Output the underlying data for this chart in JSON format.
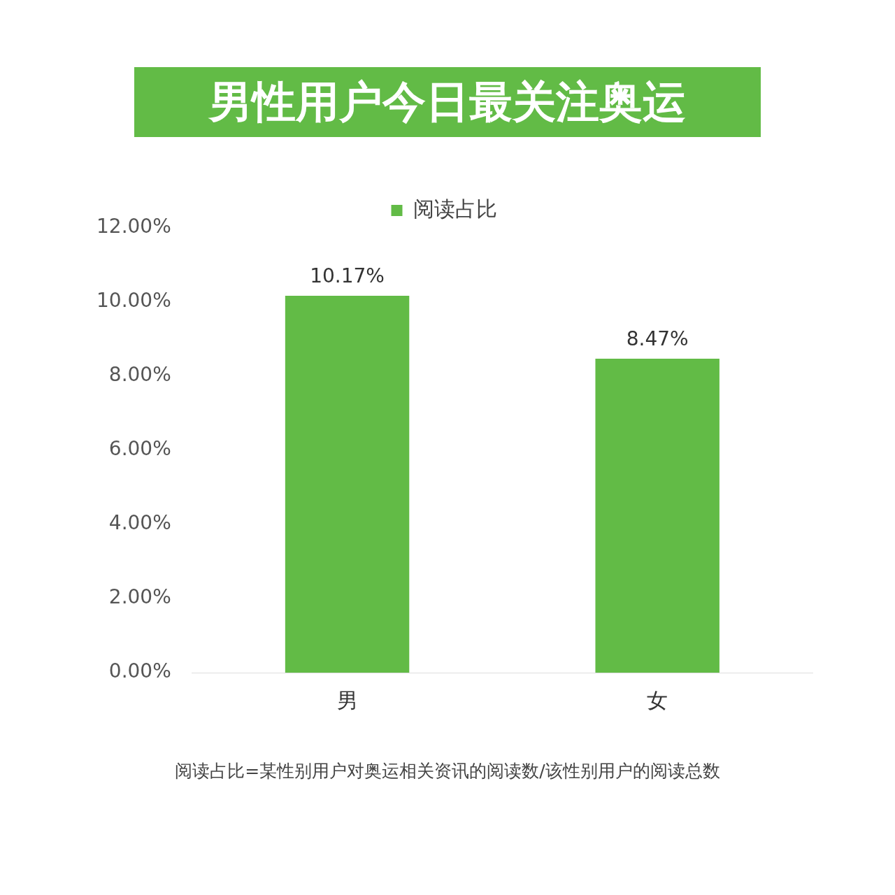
{
  "chart_data": {
    "type": "bar",
    "title": "男性用户今日最关注奥运",
    "categories": [
      "男",
      "女"
    ],
    "series": [
      {
        "name": "阅读占比",
        "color": "#62bb46",
        "values": [
          10.17,
          8.47
        ],
        "value_labels": [
          "10.17%",
          "8.47%"
        ]
      }
    ],
    "ylim": [
      0,
      12
    ],
    "yticks": [
      {
        "value": 0,
        "label": "0.00%"
      },
      {
        "value": 2,
        "label": "2.00%"
      },
      {
        "value": 4,
        "label": "4.00%"
      },
      {
        "value": 6,
        "label": "6.00%"
      },
      {
        "value": 8,
        "label": "8.00%"
      },
      {
        "value": 10,
        "label": "10.00%"
      },
      {
        "value": 12,
        "label": "12.00%"
      }
    ],
    "grid": false,
    "legend": "top",
    "annotations": [
      "阅读占比=某性别用户对奥运相关资讯的阅读数/该性别用户的阅读总数"
    ]
  }
}
